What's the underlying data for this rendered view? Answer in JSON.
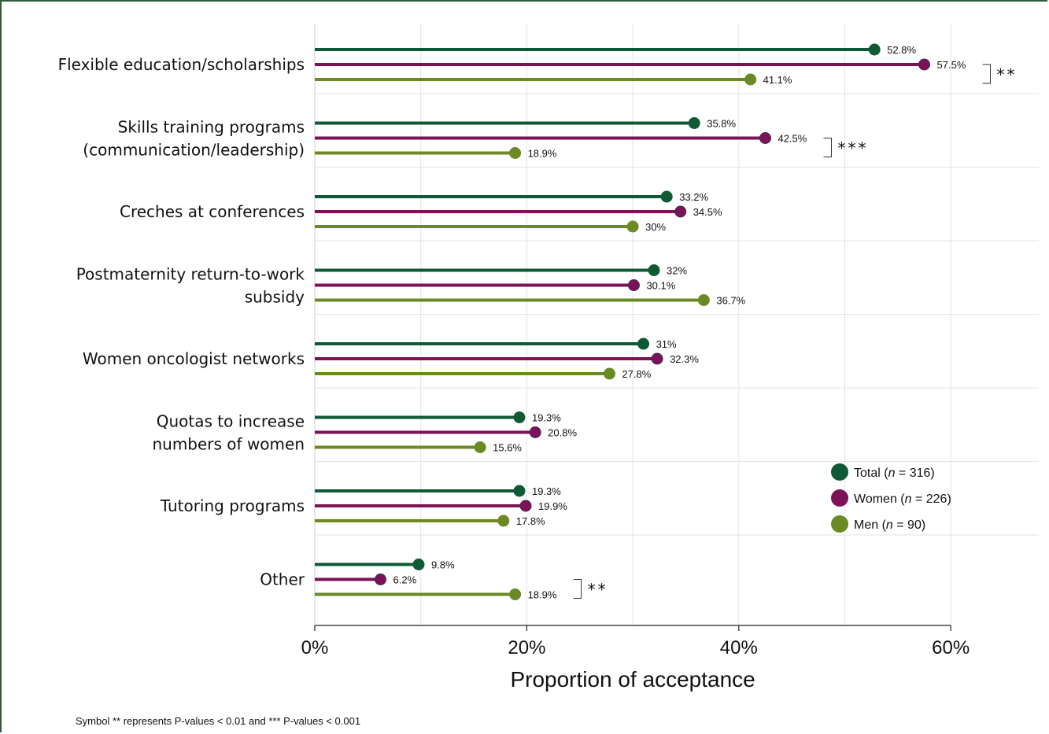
{
  "chart_data": {
    "type": "lollipop",
    "categories": [
      [
        "Flexible education/scholarships"
      ],
      [
        "Skills training programs",
        "(communication/leadership)"
      ],
      [
        "Creches at conferences"
      ],
      [
        "Postmaternity return-to-work",
        "subsidy"
      ],
      [
        "Women oncologist networks"
      ],
      [
        "Quotas to increase",
        "numbers of women"
      ],
      [
        "Tutoring programs"
      ],
      [
        "Other"
      ]
    ],
    "series": [
      {
        "name": "Total (n = 316)",
        "color": "#0f5a35",
        "values": [
          52.8,
          35.8,
          33.2,
          32,
          31,
          19.3,
          19.3,
          9.8
        ]
      },
      {
        "name": "Women (n = 226)",
        "color": "#7b1356",
        "values": [
          57.5,
          42.5,
          34.5,
          30.1,
          32.3,
          20.8,
          19.9,
          6.2
        ]
      },
      {
        "name": "Men (n = 90)",
        "color": "#6b8a23",
        "values": [
          41.1,
          18.9,
          30,
          36.7,
          27.8,
          15.6,
          17.8,
          18.9
        ]
      }
    ],
    "value_labels": [
      [
        "52.8%",
        "57.5%",
        "41.1%"
      ],
      [
        "35.8%",
        "42.5%",
        "18.9%"
      ],
      [
        "33.2%",
        "34.5%",
        "30%"
      ],
      [
        "32%",
        "30.1%",
        "36.7%"
      ],
      [
        "31%",
        "32.3%",
        "27.8%"
      ],
      [
        "19.3%",
        "20.8%",
        "15.6%"
      ],
      [
        "19.3%",
        "19.9%",
        "17.8%"
      ],
      [
        "9.8%",
        "6.2%",
        "18.9%"
      ]
    ],
    "significance": [
      {
        "category_index": 0,
        "label": "**"
      },
      {
        "category_index": 1,
        "label": "***"
      },
      {
        "category_index": 7,
        "label": "**"
      }
    ],
    "xlabel": "Proportion of acceptance",
    "xlim": [
      0,
      60
    ],
    "xticks": [
      0,
      20,
      40,
      60
    ],
    "xtick_labels": [
      "0%",
      "20%",
      "40%",
      "60%"
    ],
    "minor_gridlines": [
      10,
      30,
      50
    ],
    "grid": true,
    "legend_position": "right",
    "legend": [
      {
        "prefix": "Total (",
        "n": "n",
        "suffix": " = 316)"
      },
      {
        "prefix": "Women (",
        "n": "n",
        "suffix": " = 226)"
      },
      {
        "prefix": "Men (",
        "n": "n",
        "suffix": " = 90)"
      }
    ]
  },
  "footnote": "Symbol ** represents P-values < 0.01 and ***  P-values < 0.001"
}
